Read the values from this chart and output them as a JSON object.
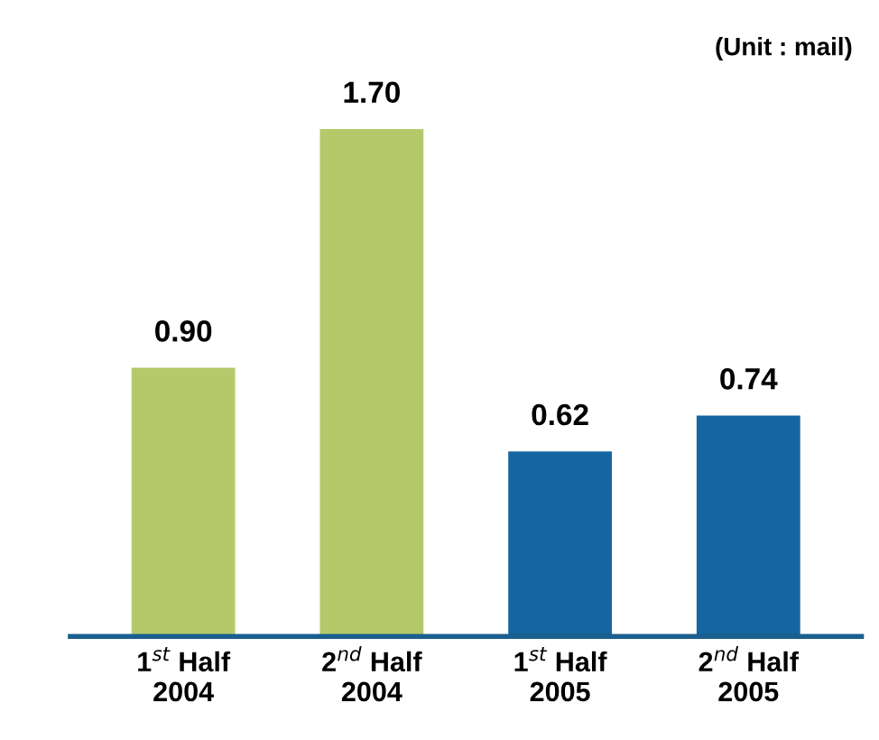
{
  "chart_data": {
    "type": "bar",
    "categories": [
      "1$^{st}$ Half\n2004",
      "2$^{nd}$ Half\n2004",
      "1$^{st}$ Half\n2005",
      "2$^{nd}$ Half\n2005"
    ],
    "values": [
      0.9,
      1.7,
      0.62,
      0.74
    ],
    "colors": [
      "#b5c96a",
      "#b5c96a",
      "#1565a0",
      "#1565a0"
    ],
    "value_labels": [
      "0.90",
      "1.70",
      "0.62",
      "0.74"
    ],
    "annotations": [
      "(Unit : mail)"
    ],
    "grid": false
  }
}
